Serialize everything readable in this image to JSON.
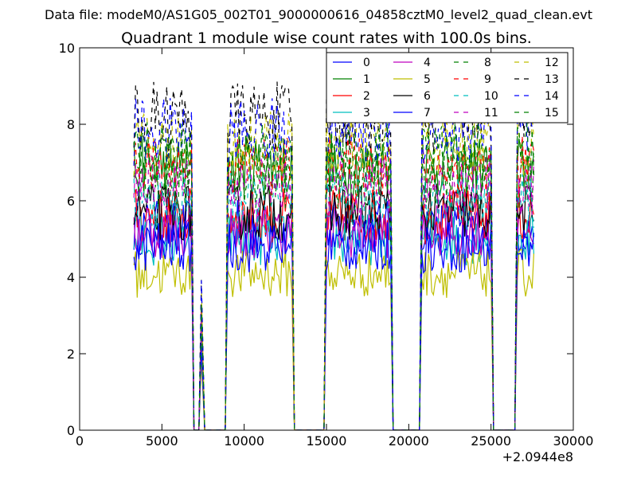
{
  "figure": {
    "suptitle": "Data file: modeM0/AS1G05_002T01_9000000616_04858cztM0_level2_quad_clean.evt",
    "offset_label": "+2.0944e8"
  },
  "chart_data": {
    "type": "line",
    "title": "Quadrant 1 module wise count rates with 100.0s bins.",
    "xlabel": "",
    "ylabel": "",
    "xlim": [
      0,
      30000
    ],
    "ylim": [
      0,
      10
    ],
    "x_ticks": [
      0,
      5000,
      10000,
      15000,
      20000,
      25000,
      30000
    ],
    "x_tick_labels": [
      "0",
      "5000",
      "10000",
      "15000",
      "20000",
      "25000",
      "30000"
    ],
    "y_ticks": [
      0,
      2,
      4,
      6,
      8,
      10
    ],
    "y_tick_labels": [
      "0",
      "2",
      "4",
      "6",
      "8",
      "10"
    ],
    "x_offset": 209440000,
    "bin_width_s": 100,
    "grid": false,
    "legend_position": "top-right",
    "legend_columns": 4,
    "observing_segments": [
      {
        "start": 3300,
        "end": 6800
      },
      {
        "start": 7400,
        "end": 7450
      },
      {
        "start": 9000,
        "end": 12900
      },
      {
        "start": 15000,
        "end": 18900
      },
      {
        "start": 20800,
        "end": 25000
      },
      {
        "start": 26600,
        "end": 27600
      }
    ],
    "series": [
      {
        "name": "0",
        "color": "#0000ff",
        "dash": "solid",
        "mean": 5.3
      },
      {
        "name": "1",
        "color": "#008000",
        "dash": "solid",
        "mean": 6.9
      },
      {
        "name": "2",
        "color": "#ff0000",
        "dash": "solid",
        "mean": 5.6
      },
      {
        "name": "3",
        "color": "#00bfbf",
        "dash": "solid",
        "mean": 5.0
      },
      {
        "name": "4",
        "color": "#bf00bf",
        "dash": "solid",
        "mean": 5.2
      },
      {
        "name": "5",
        "color": "#bfbf00",
        "dash": "solid",
        "mean": 4.1
      },
      {
        "name": "6",
        "color": "#000000",
        "dash": "solid",
        "mean": 5.7
      },
      {
        "name": "7",
        "color": "#0000ff",
        "dash": "solid",
        "mean": 4.8
      },
      {
        "name": "8",
        "color": "#008000",
        "dash": "dashed",
        "mean": 6.6
      },
      {
        "name": "9",
        "color": "#ff0000",
        "dash": "dashed",
        "mean": 6.9
      },
      {
        "name": "10",
        "color": "#00bfbf",
        "dash": "dashed",
        "mean": 6.0
      },
      {
        "name": "11",
        "color": "#bf00bf",
        "dash": "dashed",
        "mean": 6.4
      },
      {
        "name": "12",
        "color": "#bfbf00",
        "dash": "dashed",
        "mean": 7.5
      },
      {
        "name": "13",
        "color": "#000000",
        "dash": "dashed",
        "mean": 8.2
      },
      {
        "name": "14",
        "color": "#0000ff",
        "dash": "dashed",
        "mean": 7.8
      },
      {
        "name": "15",
        "color": "#008000",
        "dash": "dashed",
        "mean": 7.2
      }
    ]
  }
}
